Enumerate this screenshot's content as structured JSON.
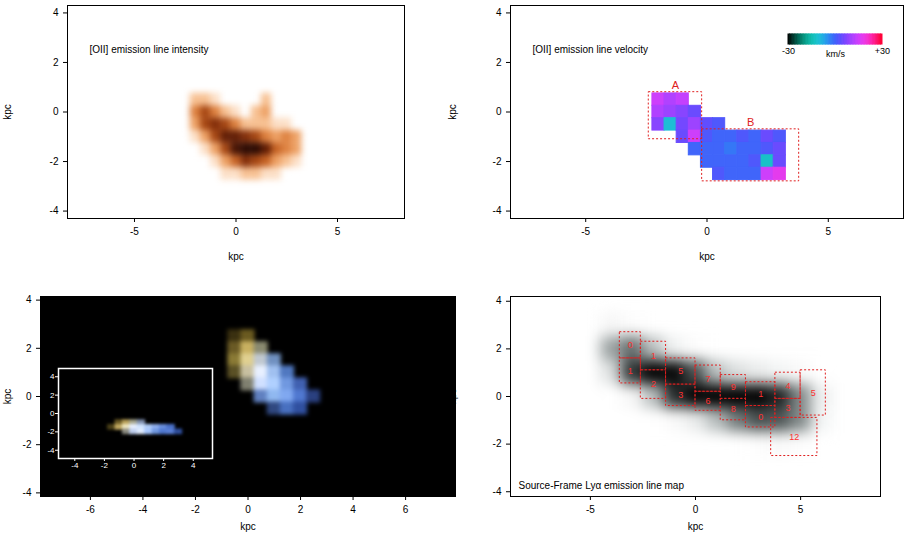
{
  "chart_data": [
    {
      "type": "heatmap",
      "title": "[OII] emission line intensity",
      "x_label": "kpc",
      "y_label": "kpc",
      "xlim": [
        -8.3,
        8.3
      ],
      "ylim": [
        -4.3,
        4.3
      ],
      "xticks": [
        -5,
        0,
        5
      ],
      "yticks": [
        -4,
        -2,
        0,
        2,
        4
      ],
      "zlim": [
        0,
        1
      ],
      "x": [
        -2.5,
        -2,
        -1.5,
        -1,
        -0.5,
        0,
        0.5,
        1,
        1.5,
        2,
        2.5,
        3,
        3.5
      ],
      "y": [
        0.5,
        0,
        -0.5,
        -1,
        -1.5,
        -2,
        -2.5
      ],
      "values": [
        [
          0,
          0.2,
          0.2,
          0.1,
          0,
          0,
          0,
          0,
          0.2,
          0,
          0,
          0,
          0
        ],
        [
          0,
          0.4,
          0.6,
          0.4,
          0.2,
          0.1,
          0,
          0.2,
          0.3,
          0,
          0,
          0,
          0
        ],
        [
          0,
          0.3,
          0.6,
          0.7,
          0.6,
          0.4,
          0.2,
          0.2,
          0.2,
          0.1,
          0.1,
          0,
          0
        ],
        [
          0,
          0.1,
          0.3,
          0.6,
          0.8,
          0.8,
          0.7,
          0.6,
          0.4,
          0.3,
          0.4,
          0.3,
          0
        ],
        [
          0,
          0,
          0.1,
          0.3,
          0.6,
          0.9,
          1,
          1,
          0.8,
          0.5,
          0.4,
          0.3,
          0
        ],
        [
          0,
          0,
          0,
          0.1,
          0.3,
          0.5,
          0.7,
          0.6,
          0.5,
          0.3,
          0.2,
          0.1,
          0
        ],
        [
          0,
          0,
          0,
          0,
          0.1,
          0.1,
          0.2,
          0.2,
          0.1,
          0.1,
          0,
          0,
          0
        ]
      ]
    },
    {
      "type": "heatmap",
      "title": "[OII] emission line velocity",
      "x_label": "kpc",
      "y_label": "kpc",
      "xlim": [
        -8.1,
        8.1
      ],
      "ylim": [
        -4.3,
        4.3
      ],
      "xticks": [
        -5,
        0,
        5
      ],
      "yticks": [
        -4,
        -2,
        0,
        2,
        4
      ],
      "colorbar": {
        "range": [
          -30,
          30
        ],
        "ticks": [
          -30,
          {
            "value": 30,
            "label": "+30"
          }
        ],
        "label": "km/s"
      },
      "x": [
        -2.5,
        -2,
        -1.5,
        -1,
        -0.5,
        0,
        0.5,
        1,
        1.5,
        2,
        2.5,
        3,
        3.5
      ],
      "y": [
        0.5,
        0,
        -0.5,
        -1,
        -1.5,
        -2,
        -2.5
      ],
      "values": [
        [
          null,
          15,
          12,
          14,
          null,
          null,
          null,
          null,
          null,
          null,
          null,
          null,
          null
        ],
        [
          null,
          12,
          10,
          8,
          5,
          null,
          null,
          null,
          null,
          null,
          null,
          null,
          null
        ],
        [
          null,
          8,
          -10,
          6,
          10,
          4,
          2,
          null,
          null,
          null,
          null,
          null,
          null
        ],
        [
          null,
          null,
          null,
          5,
          15,
          2,
          0,
          0,
          2,
          0,
          5,
          2,
          null
        ],
        [
          null,
          null,
          null,
          null,
          0,
          0,
          0,
          -2,
          0,
          0,
          2,
          5,
          null
        ],
        [
          null,
          null,
          null,
          null,
          null,
          0,
          0,
          0,
          0,
          2,
          -12,
          5,
          null
        ],
        [
          null,
          null,
          null,
          null,
          null,
          null,
          2,
          0,
          0,
          0,
          15,
          18,
          null
        ]
      ],
      "regions": [
        {
          "label": "A",
          "x": [
            -2.4,
            -0.2
          ],
          "y": [
            -1.1,
            0.8
          ]
        },
        {
          "label": "B",
          "x": [
            -0.2,
            3.8
          ],
          "y": [
            -2.8,
            -0.7
          ]
        }
      ]
    },
    {
      "type": "image",
      "x_label": "kpc",
      "y_label": "kpc",
      "xlim": [
        -7.9,
        7.9
      ],
      "ylim": [
        -4.15,
        4.15
      ],
      "xticks": [
        -6,
        -4,
        -2,
        0,
        2,
        4,
        6
      ],
      "yticks": [
        -4,
        -2,
        0,
        2,
        4
      ],
      "x": [
        -0.5,
        0,
        0.5,
        1,
        1.5,
        2,
        2.5
      ],
      "y": [
        2.5,
        2,
        1.5,
        1,
        0.5,
        0,
        -0.5
      ],
      "colors": [
        [
          "#3a3010",
          "#6a5a20",
          null,
          null,
          null,
          null,
          null
        ],
        [
          "#6a5a25",
          "#c8b060",
          "#8a8a70",
          null,
          null,
          null,
          null
        ],
        [
          "#8a7a35",
          "#e0d090",
          "#c0c8d0",
          "#7090c0",
          null,
          null,
          null
        ],
        [
          "#5a5025",
          "#c8c0a0",
          "#e8f0ff",
          "#a0c0f0",
          "#5078c0",
          null,
          null
        ],
        [
          null,
          "#808070",
          "#d0e0ff",
          "#b0d0ff",
          "#7098e0",
          "#4060b0",
          null
        ],
        [
          null,
          null,
          "#6080c0",
          "#90b8f0",
          "#80a8f0",
          "#5078d0",
          "#2a4080"
        ],
        [
          null,
          null,
          null,
          "#304880",
          "#4870c0",
          "#3050a0",
          null
        ]
      ],
      "inset": {
        "xlim": [
          -5.1,
          5.3
        ],
        "ylim": [
          -4.9,
          4.9
        ],
        "xticks": [
          -4,
          -2,
          0,
          2,
          4
        ],
        "yticks": [
          -4,
          -2,
          0,
          2,
          4
        ],
        "x": [
          -1.5,
          -1,
          -0.5,
          0,
          0.5,
          1,
          1.5,
          2,
          2.5,
          3
        ],
        "y": [
          -1,
          -1.5,
          -2
        ],
        "colors": [
          [
            null,
            "#6a5a25",
            "#b8a058",
            "#a8a890",
            "#8090b0",
            null,
            null,
            null,
            null,
            null
          ],
          [
            "#4a4018",
            "#c0a860",
            "#f0e8c0",
            "#e8f0ff",
            "#d0e4ff",
            "#b0ccf8",
            "#90b0f0",
            "#6a90e0",
            "#4a70c8",
            null
          ],
          [
            null,
            null,
            "#8a8a80",
            "#c0d0f0",
            "#e0ecff",
            "#a8c8ff",
            "#7098e0",
            "#5078d0",
            "#5a80d8",
            "#3050a0"
          ]
        ]
      }
    },
    {
      "type": "heatmap",
      "annotation": "Source-Frame Lyα emission line map",
      "x_label": "kpc",
      "y_label": "kpc",
      "xlim": [
        -8.8,
        8.8
      ],
      "ylim": [
        -4.2,
        4.2
      ],
      "xticks": [
        -5,
        0,
        5
      ],
      "yticks": [
        -4,
        -2,
        0,
        2,
        4
      ],
      "zlim": [
        0,
        1
      ],
      "x": [
        -4,
        -3,
        -2,
        -1,
        0,
        1,
        2,
        3,
        4,
        5,
        6
      ],
      "y": [
        3,
        2,
        1,
        0,
        -1,
        -2
      ],
      "values": [
        [
          0.03,
          0.01,
          0,
          0,
          0,
          0,
          0,
          0,
          0,
          0,
          0
        ],
        [
          0.28,
          0.4,
          0.21,
          0.05,
          0.01,
          0,
          0,
          0,
          0,
          0,
          0
        ],
        [
          0.11,
          0.55,
          1,
          0.78,
          0.47,
          0.21,
          0.11,
          0.07,
          0.04,
          0.02,
          0
        ],
        [
          0,
          0.03,
          0.21,
          0.57,
          0.87,
          1,
          0.94,
          0.87,
          0.62,
          0.34,
          0.06
        ],
        [
          0,
          0,
          0,
          0.02,
          0.07,
          0.21,
          0.37,
          0.47,
          0.46,
          0.34,
          0.04
        ],
        [
          0,
          0,
          0,
          0,
          0,
          0,
          0,
          0.01,
          0.02,
          0.01,
          0
        ]
      ],
      "regions": [
        {
          "label": "0",
          "x": [
            -3.6,
            -2.6
          ],
          "y": [
            1.6,
            2.7
          ]
        },
        {
          "label": "1",
          "x": [
            -3.6,
            -2.6
          ],
          "y": [
            0.55,
            1.6
          ]
        },
        {
          "label": "1",
          "x": [
            -2.6,
            -1.4
          ],
          "y": [
            1.1,
            2.3
          ]
        },
        {
          "label": "2",
          "x": [
            -2.6,
            -1.4
          ],
          "y": [
            -0.1,
            1.1
          ]
        },
        {
          "label": "5",
          "x": [
            -1.4,
            0
          ],
          "y": [
            0.5,
            1.6
          ]
        },
        {
          "label": "3",
          "x": [
            -1.4,
            0
          ],
          "y": [
            -0.4,
            0.5
          ]
        },
        {
          "label": "7",
          "x": [
            0,
            1.2
          ],
          "y": [
            0.2,
            1.3
          ]
        },
        {
          "label": "6",
          "x": [
            0,
            1.2
          ],
          "y": [
            -0.6,
            0.2
          ]
        },
        {
          "label": "9",
          "x": [
            1.2,
            2.4
          ],
          "y": [
            -0.1,
            0.9
          ]
        },
        {
          "label": "8",
          "x": [
            1.2,
            2.4
          ],
          "y": [
            -1,
            -0.1
          ]
        },
        {
          "label": "1",
          "x": [
            2.4,
            3.8
          ],
          "y": [
            -0.4,
            0.6
          ]
        },
        {
          "label": "0",
          "x": [
            2.4,
            3.8
          ],
          "y": [
            -1.3,
            -0.4
          ]
        },
        {
          "label": "4",
          "x": [
            3.8,
            5
          ],
          "y": [
            -0.1,
            1
          ]
        },
        {
          "label": "3",
          "x": [
            3.8,
            5
          ],
          "y": [
            -0.9,
            -0.1
          ]
        },
        {
          "label": "5",
          "x": [
            5,
            6.2
          ],
          "y": [
            -0.8,
            1.1
          ]
        },
        {
          "label": "12",
          "x": [
            3.6,
            5.8
          ],
          "y": [
            -2.5,
            -0.9
          ]
        }
      ]
    }
  ]
}
